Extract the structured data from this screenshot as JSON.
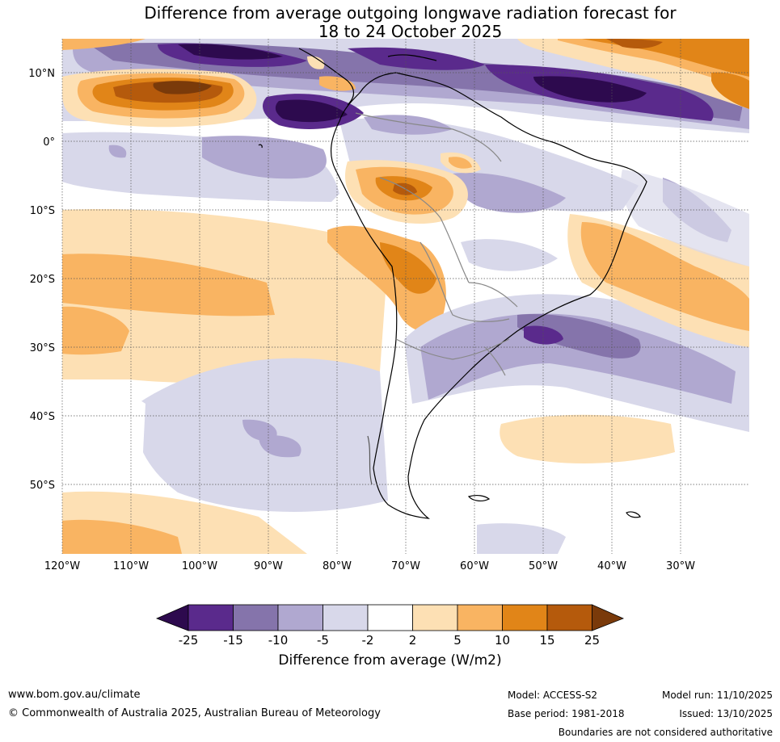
{
  "title": {
    "line1": "Difference from average outgoing longwave radiation forecast for",
    "line2": "18 to 24 October 2025"
  },
  "map": {
    "region": "South America",
    "lat_labels": [
      "10°N",
      "0°",
      "10°S",
      "20°S",
      "30°S",
      "40°S",
      "50°S"
    ],
    "lon_labels": [
      "120°W",
      "110°W",
      "100°W",
      "90°W",
      "80°W",
      "70°W",
      "60°W",
      "50°W",
      "40°W",
      "30°W"
    ]
  },
  "colorbar": {
    "ticks": [
      "-25",
      "-15",
      "-10",
      "-5",
      "-2",
      "2",
      "5",
      "10",
      "15",
      "25"
    ],
    "colors": [
      "#2d0a4e",
      "#5a2a8c",
      "#8574ab",
      "#b0a8d0",
      "#d8d8ea",
      "#ffffff",
      "#fde0b4",
      "#f9b462",
      "#e18518",
      "#b55a0c",
      "#7a3a0a"
    ],
    "label": "Difference from average (W/m2)"
  },
  "footer": {
    "url": "www.bom.gov.au/climate",
    "copyright": "© Commonwealth of Australia 2025, Australian Bureau of Meteorology",
    "model": "Model: ACCESS-S2",
    "base_period": "Base period: 1981-2018",
    "model_run": "Model run: 11/10/2025",
    "issued": "Issued: 13/10/2025",
    "disclaimer": "Boundaries are not considered authoritative"
  }
}
